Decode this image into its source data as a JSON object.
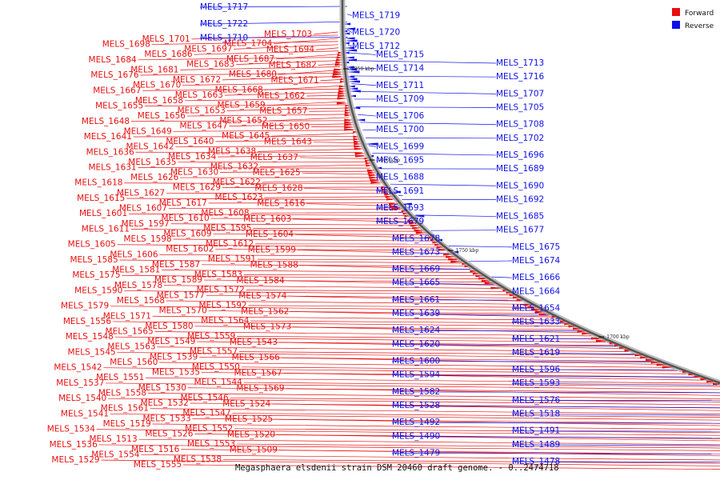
{
  "caption": "Megasphaera elsdenii strain DSM 20460 draft genome. - 0..2474718",
  "legend": [
    {
      "label": "Forward",
      "color": "#e81010"
    },
    {
      "label": "Reverse",
      "color": "#1010e8"
    }
  ],
  "colors": {
    "forward": "#e81010",
    "reverse": "#1010e8",
    "backbone": "#555555",
    "backbone_halo": "#bbbbbb"
  },
  "kbp_markers": [
    "1850 kbp",
    "1800 kbp",
    "1750 kbp",
    "1700 kbp",
    "1650 kbp"
  ],
  "forward_labels": [
    "MELS_1703",
    "MELS_1701",
    "MELS_1704",
    "MELS_1698",
    "MELS_1697",
    "MELS_1694",
    "MELS_1686",
    "MELS_1687",
    "MELS_1684",
    "MELS_1683",
    "MELS_1682",
    "MELS_1681",
    "MELS_1680",
    "MELS_1676",
    "MELS_1672",
    "MELS_1671",
    "MELS_1670",
    "MELS_1668",
    "MELS_1667",
    "MELS_1663",
    "MELS_1662",
    "MELS_1658",
    "MELS_1659",
    "MELS_1655",
    "MELS_1653",
    "MELS_1657",
    "MELS_1656",
    "MELS_1652",
    "MELS_1648",
    "MELS_1647",
    "MELS_1650",
    "MELS_1649",
    "MELS_1645",
    "MELS_1641",
    "MELS_1640",
    "MELS_1643",
    "MELS_1642",
    "MELS_1638",
    "MELS_1636",
    "MELS_1634",
    "MELS_1637",
    "MELS_1635",
    "MELS_1632",
    "MELS_1631",
    "MELS_1630",
    "MELS_1625",
    "MELS_1626",
    "MELS_1622",
    "MELS_1618",
    "MELS_1629",
    "MELS_1628",
    "MELS_1627",
    "MELS_1623",
    "MELS_1615",
    "MELS_1617",
    "MELS_1616",
    "MELS_1607",
    "MELS_1608",
    "MELS_1601",
    "MELS_1610",
    "MELS_1603",
    "MELS_1597",
    "MELS_1595",
    "MELS_1611",
    "MELS_1609",
    "MELS_1604",
    "MELS_1598",
    "MELS_1612",
    "MELS_1605",
    "MELS_1602",
    "MELS_1599",
    "MELS_1606",
    "MELS_1591",
    "MELS_1585",
    "MELS_1587",
    "MELS_1588",
    "MELS_1581",
    "MELS_1583",
    "MELS_1575",
    "MELS_1589",
    "MELS_1584",
    "MELS_1578",
    "MELS_1572",
    "MELS_1590",
    "MELS_1577",
    "MELS_1574",
    "MELS_1568",
    "MELS_1592",
    "MELS_1579",
    "MELS_1570",
    "MELS_1562",
    "MELS_1571",
    "MELS_1564",
    "MELS_1556",
    "MELS_1580",
    "MELS_1573",
    "MELS_1565",
    "MELS_1559",
    "MELS_1548",
    "MELS_1549",
    "MELS_1543",
    "MELS_1563",
    "MELS_1557",
    "MELS_1545",
    "MELS_1539",
    "MELS_1566",
    "MELS_1560",
    "MELS_1550",
    "MELS_1542",
    "MELS_1535",
    "MELS_1567",
    "MELS_1551",
    "MELS_1544",
    "MELS_1537",
    "MELS_1530",
    "MELS_1569",
    "MELS_1558",
    "MELS_1546",
    "MELS_1540",
    "MELS_1532",
    "MELS_1524",
    "MELS_1561",
    "MELS_1547",
    "MELS_1541",
    "MELS_1533",
    "MELS_1525",
    "MELS_1519",
    "MELS_1552",
    "MELS_1534",
    "MELS_1526",
    "MELS_1520",
    "MELS_1513",
    "MELS_1553",
    "MELS_1536",
    "MELS_1516",
    "MELS_1509",
    "MELS_1554",
    "MELS_1538",
    "MELS_1529",
    "MELS_1555"
  ],
  "reverse_labels": [
    "MELS_1717",
    "MELS_1719",
    "MELS_1722",
    "MELS_1720",
    "MELS_1710",
    "MELS_1712",
    "MELS_1715",
    "MELS_1713",
    "MELS_1714",
    "MELS_1716",
    "MELS_1711",
    "MELS_1707",
    "MELS_1709",
    "MELS_1705",
    "MELS_1706",
    "MELS_1708",
    "MELS_1700",
    "MELS_1702",
    "MELS_1699",
    "MELS_1696",
    "MELS_1695",
    "MELS_1689",
    "MELS_1688",
    "MELS_1690",
    "MELS_1691",
    "MELS_1692",
    "MELS_1693",
    "MELS_1685",
    "MELS_1679",
    "MELS_1677",
    "MELS_1678",
    "MELS_1675",
    "MELS_1673",
    "MELS_1674",
    "MELS_1669",
    "MELS_1666",
    "MELS_1665",
    "MELS_1664",
    "MELS_1661",
    "MELS_1654",
    "MELS_1639",
    "MELS_1633",
    "MELS_1624",
    "MELS_1621",
    "MELS_1620",
    "MELS_1619",
    "MELS_1600",
    "MELS_1596",
    "MELS_1594",
    "MELS_1593",
    "MELS_1582",
    "MELS_1576",
    "MELS_1528",
    "MELS_1518",
    "MELS_1492",
    "MELS_1491",
    "MELS_1490",
    "MELS_1489",
    "MELS_1479",
    "MELS_1478"
  ]
}
